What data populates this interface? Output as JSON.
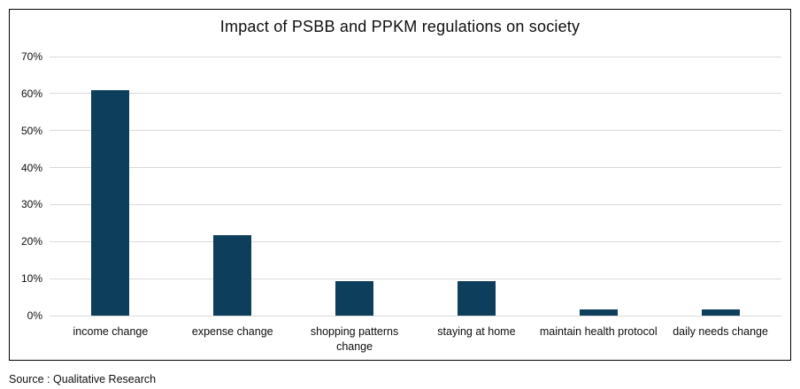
{
  "chart_data": {
    "type": "bar",
    "title": "Impact of PSBB and PPKM regulations on society",
    "categories": [
      "income change",
      "expense change",
      "shopping patterns change",
      "staying at home",
      "maintain health protocol",
      "daily needs change"
    ],
    "values": [
      61,
      21.7,
      9.3,
      9.3,
      1.7,
      1.7
    ],
    "unit": "%",
    "xlabel": "",
    "ylabel": "",
    "ylim": [
      0,
      70
    ],
    "ytick_step": 10,
    "ytick_labels": [
      "0%",
      "10%",
      "20%",
      "30%",
      "40%",
      "50%",
      "60%",
      "70%"
    ],
    "bar_color": "#0d3e5c",
    "gridline_color": "#d9d9d9",
    "grid": true,
    "legend_position": "none"
  },
  "source_note": "Source : Qualitative Research"
}
